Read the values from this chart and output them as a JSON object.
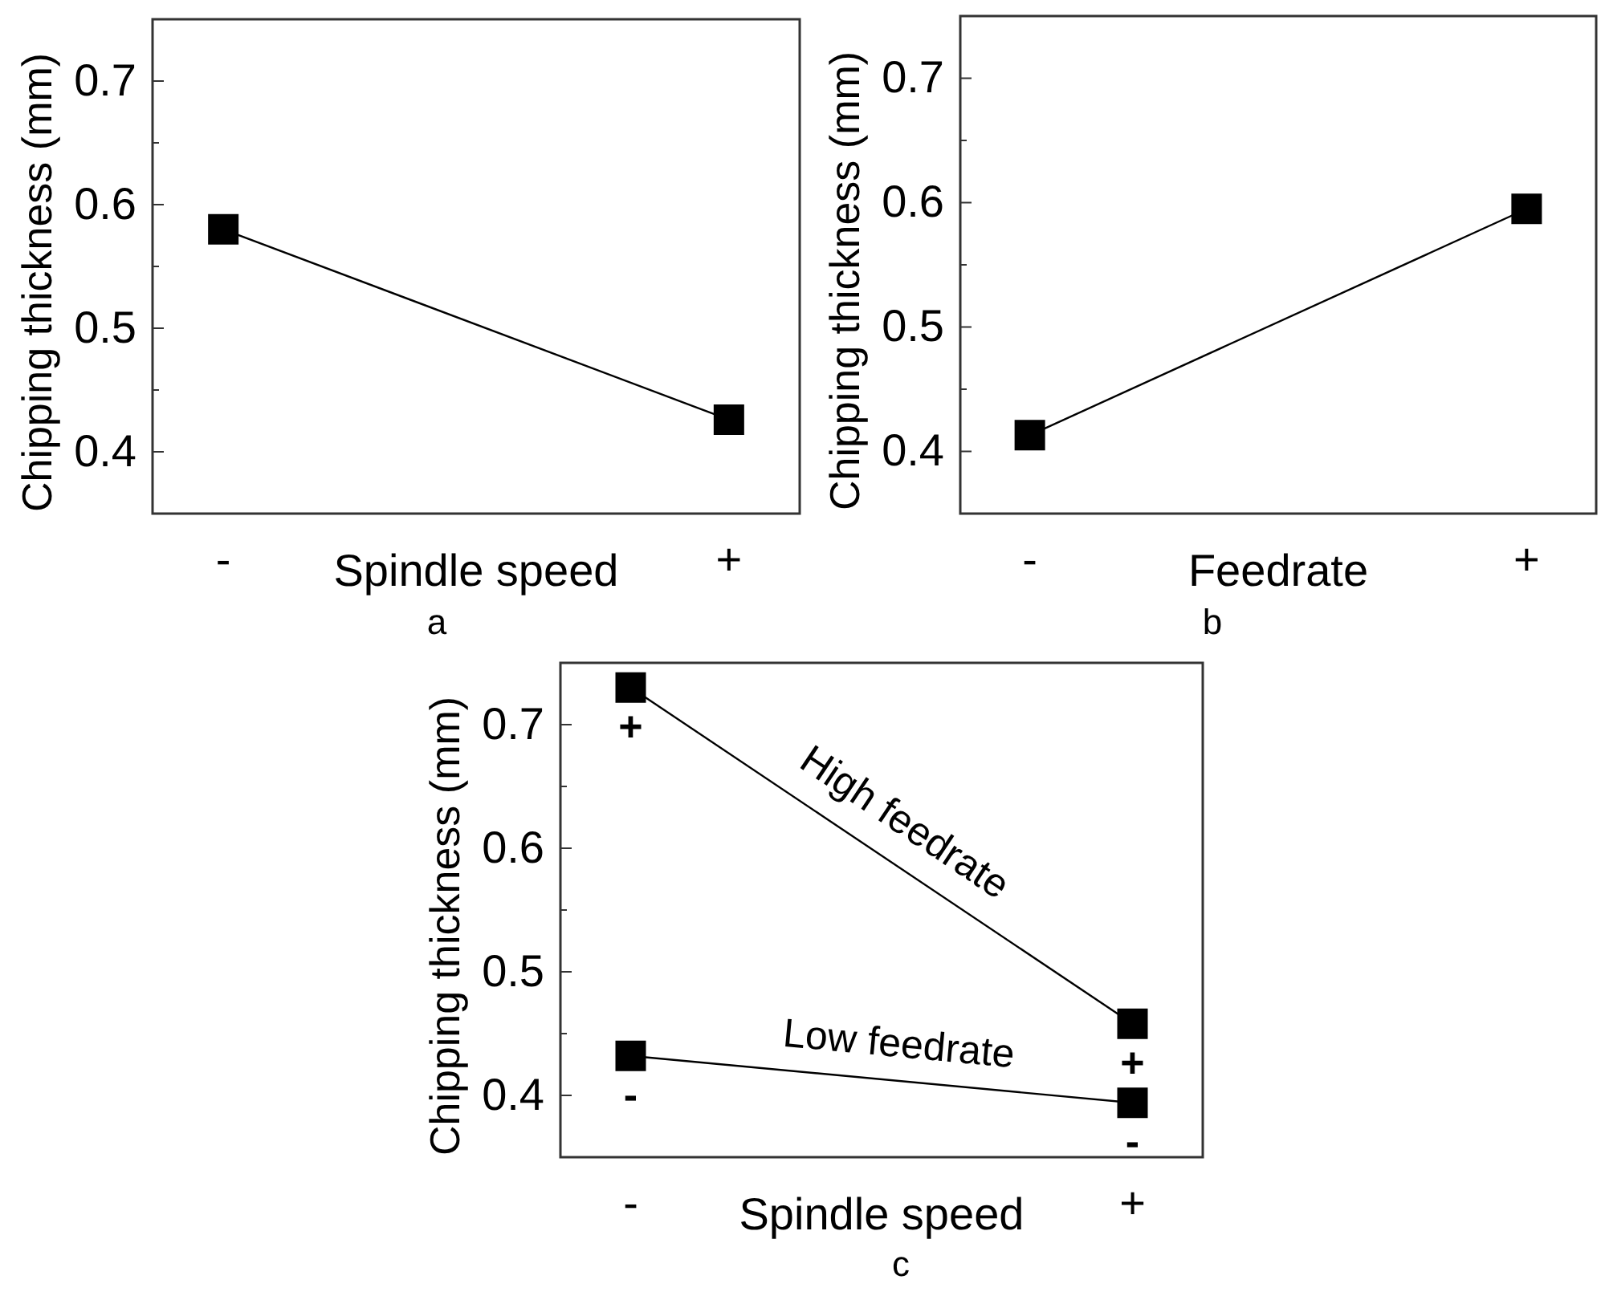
{
  "chart_data": [
    {
      "type": "line",
      "categories": [
        "-",
        "+"
      ],
      "xlabel": "Spindle speed",
      "ylabel": "Chipping thickness (mm)",
      "ylim": [
        0.35,
        0.75
      ],
      "yticks": [
        0.4,
        0.5,
        0.6,
        0.7
      ],
      "marker": "square",
      "line_style": "solid",
      "series": [
        {
          "color": "#000000",
          "values": [
            0.58,
            0.426
          ]
        }
      ],
      "annotations": [
        "a"
      ]
    },
    {
      "type": "line",
      "categories": [
        "-",
        "+"
      ],
      "xlabel": "Feedrate",
      "ylabel": "Chipping thickness (mm)",
      "ylim": [
        0.35,
        0.75
      ],
      "yticks": [
        0.4,
        0.5,
        0.6,
        0.7
      ],
      "marker": "square",
      "line_style": "solid",
      "series": [
        {
          "color": "#000000",
          "values": [
            0.413,
            0.595
          ]
        }
      ],
      "annotations": [
        "b"
      ]
    },
    {
      "type": "line",
      "categories": [
        "-",
        "+"
      ],
      "xlabel": "Spindle speed",
      "ylabel": "Chipping thickness (mm)",
      "ylim": [
        0.35,
        0.75
      ],
      "yticks": [
        0.4,
        0.5,
        0.6,
        0.7
      ],
      "marker": "square",
      "line_style": "solid",
      "series": [
        {
          "name": "High feedrate",
          "color": "#000000",
          "values": [
            0.73,
            0.458
          ]
        },
        {
          "name": "Low feedrate",
          "color": "#000000",
          "values": [
            0.432,
            0.394
          ]
        }
      ],
      "annotations": [
        "+",
        "+",
        "-",
        "-",
        "c"
      ]
    }
  ]
}
